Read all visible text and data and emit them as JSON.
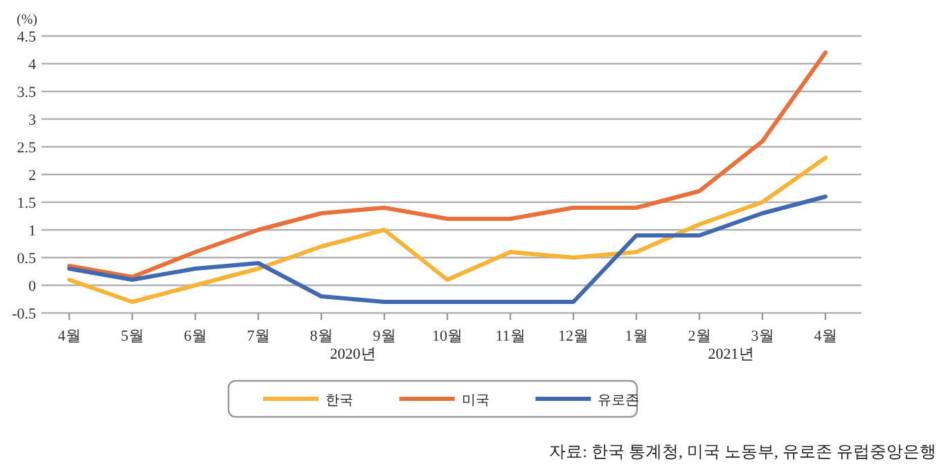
{
  "chart_data": {
    "type": "line",
    "ylabel": "(%)",
    "categories": [
      "4월",
      "5월",
      "6월",
      "7월",
      "8월",
      "9월",
      "10월",
      "11월",
      "12월",
      "1월",
      "2월",
      "3월",
      "4월"
    ],
    "series": [
      {
        "name": "한국",
        "color": "#f7b335",
        "values": [
          0.1,
          -0.3,
          0.0,
          0.3,
          0.7,
          1.0,
          0.1,
          0.6,
          0.5,
          0.6,
          1.1,
          1.5,
          2.3
        ]
      },
      {
        "name": "미국",
        "color": "#e8703a",
        "values": [
          0.35,
          0.15,
          0.6,
          1.0,
          1.3,
          1.4,
          1.2,
          1.2,
          1.4,
          1.4,
          1.7,
          2.6,
          4.2
        ]
      },
      {
        "name": "유로존",
        "color": "#4169b0",
        "values": [
          0.3,
          0.1,
          0.3,
          0.4,
          -0.2,
          -0.3,
          -0.3,
          -0.3,
          -0.3,
          0.9,
          0.9,
          1.3,
          1.6
        ]
      }
    ],
    "ylim": [
      -0.5,
      4.5
    ],
    "yticks": [
      -0.5,
      0,
      0.5,
      1,
      1.5,
      2,
      2.5,
      3,
      3.5,
      4,
      4.5
    ],
    "grid": "y",
    "legend": "bottom",
    "annotations": [
      "2020년",
      "2021년",
      "자료: 한국 통계청, 미국 노동부, 유로존 유럽중앙은행"
    ]
  }
}
